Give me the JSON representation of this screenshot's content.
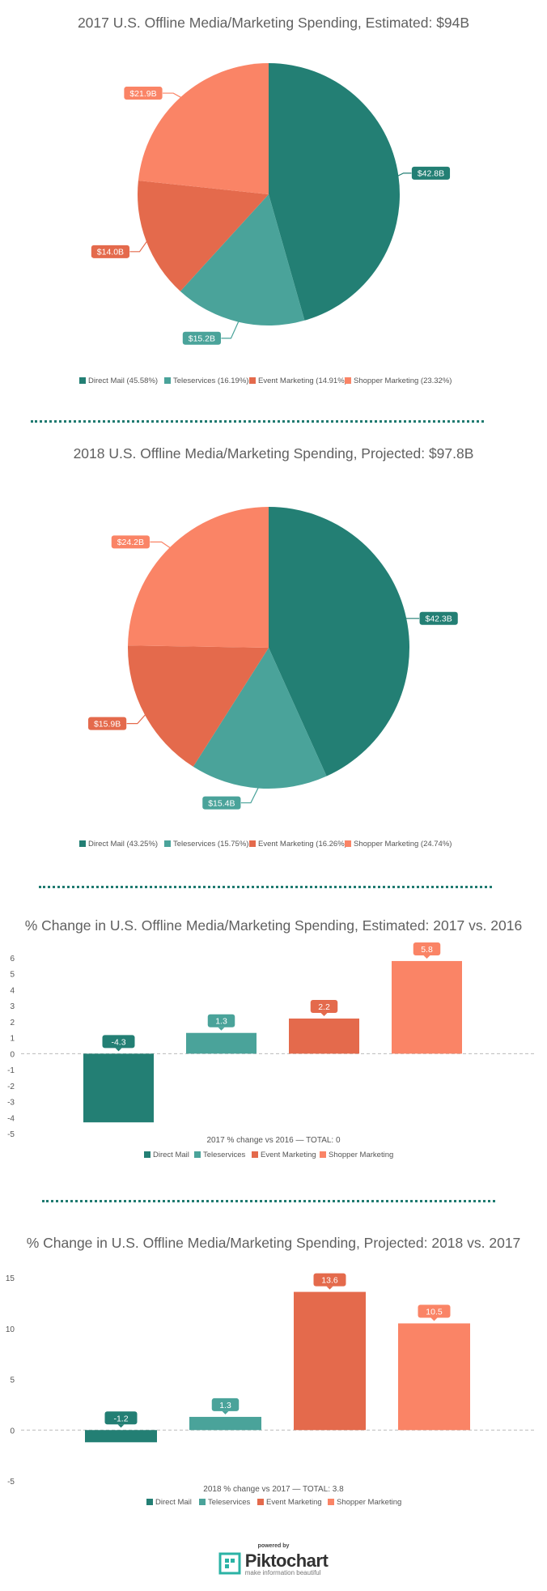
{
  "colors": {
    "direct_mail": "#237f74",
    "teleservices": "#4aa39a",
    "event_marketing": "#e46a4c",
    "shopper_marketing": "#fa8466",
    "divider": "#1f7a70"
  },
  "chart_data": [
    {
      "type": "pie",
      "title": "2017 U.S. Offline Media/Marketing Spending, Estimated: $94B",
      "categories": [
        "Direct Mail",
        "Teleservices",
        "Event Marketing",
        "Shopper Marketing"
      ],
      "values": [
        42.8,
        15.2,
        14.0,
        21.9
      ],
      "data_labels": [
        "$42.8B",
        "$15.2B",
        "$14.0B",
        "$21.9B"
      ],
      "legend": [
        "Direct Mail (45.58%)",
        "Teleservices (16.19%)",
        "Event Marketing (14.91%)",
        "Shopper Marketing (23.32%)"
      ],
      "legend_position": "bottom"
    },
    {
      "type": "pie",
      "title": "2018 U.S. Offline Media/Marketing Spending, Projected: $97.8B",
      "categories": [
        "Direct Mail",
        "Teleservices",
        "Event Marketing",
        "Shopper Marketing"
      ],
      "values": [
        42.3,
        15.4,
        15.9,
        24.2
      ],
      "data_labels": [
        "$42.3B",
        "$15.4B",
        "$15.9B",
        "$24.2B"
      ],
      "legend": [
        "Direct Mail (43.25%)",
        "Teleservices (15.75%)",
        "Event Marketing (16.26%)",
        "Shopper Marketing (24.74%)"
      ],
      "legend_position": "bottom"
    },
    {
      "type": "bar",
      "title": "% Change in U.S. Offline Media/Marketing Spending, Estimated: 2017 vs. 2016",
      "categories": [
        "Direct Mail",
        "Teleservices",
        "Event Marketing",
        "Shopper Marketing"
      ],
      "values": [
        -4.3,
        1.3,
        2.2,
        5.8
      ],
      "data_labels": [
        "-4.3",
        "1.3",
        "2.2",
        "5.8"
      ],
      "xlabel": "2017 % change vs 2016 — TOTAL: 0",
      "ylim": [
        -5,
        6
      ],
      "yticks": [
        6,
        5,
        4,
        3,
        2,
        1,
        0,
        -1,
        -2,
        -3,
        -4,
        -5
      ],
      "legend": [
        "Direct Mail",
        "Teleservices",
        "Event Marketing",
        "Shopper Marketing"
      ],
      "legend_position": "bottom"
    },
    {
      "type": "bar",
      "title": "% Change in U.S. Offline Media/Marketing Spending, Projected: 2018 vs. 2017",
      "categories": [
        "Direct Mail",
        "Teleservices",
        "Event Marketing",
        "Shopper Marketing"
      ],
      "values": [
        -1.2,
        1.3,
        13.6,
        10.5
      ],
      "data_labels": [
        "-1.2",
        "1.3",
        "13.6",
        "10.5"
      ],
      "xlabel": "2018 % change vs 2017 — TOTAL: 3.8",
      "ylim": [
        -5,
        15
      ],
      "yticks": [
        15,
        10,
        5,
        0,
        -5
      ],
      "legend": [
        "Direct Mail",
        "Teleservices",
        "Event Marketing",
        "Shopper Marketing"
      ],
      "legend_position": "bottom"
    }
  ],
  "footer": {
    "powered_by": "powered by",
    "brand": "Piktochart",
    "tagline": "make information beautiful"
  }
}
